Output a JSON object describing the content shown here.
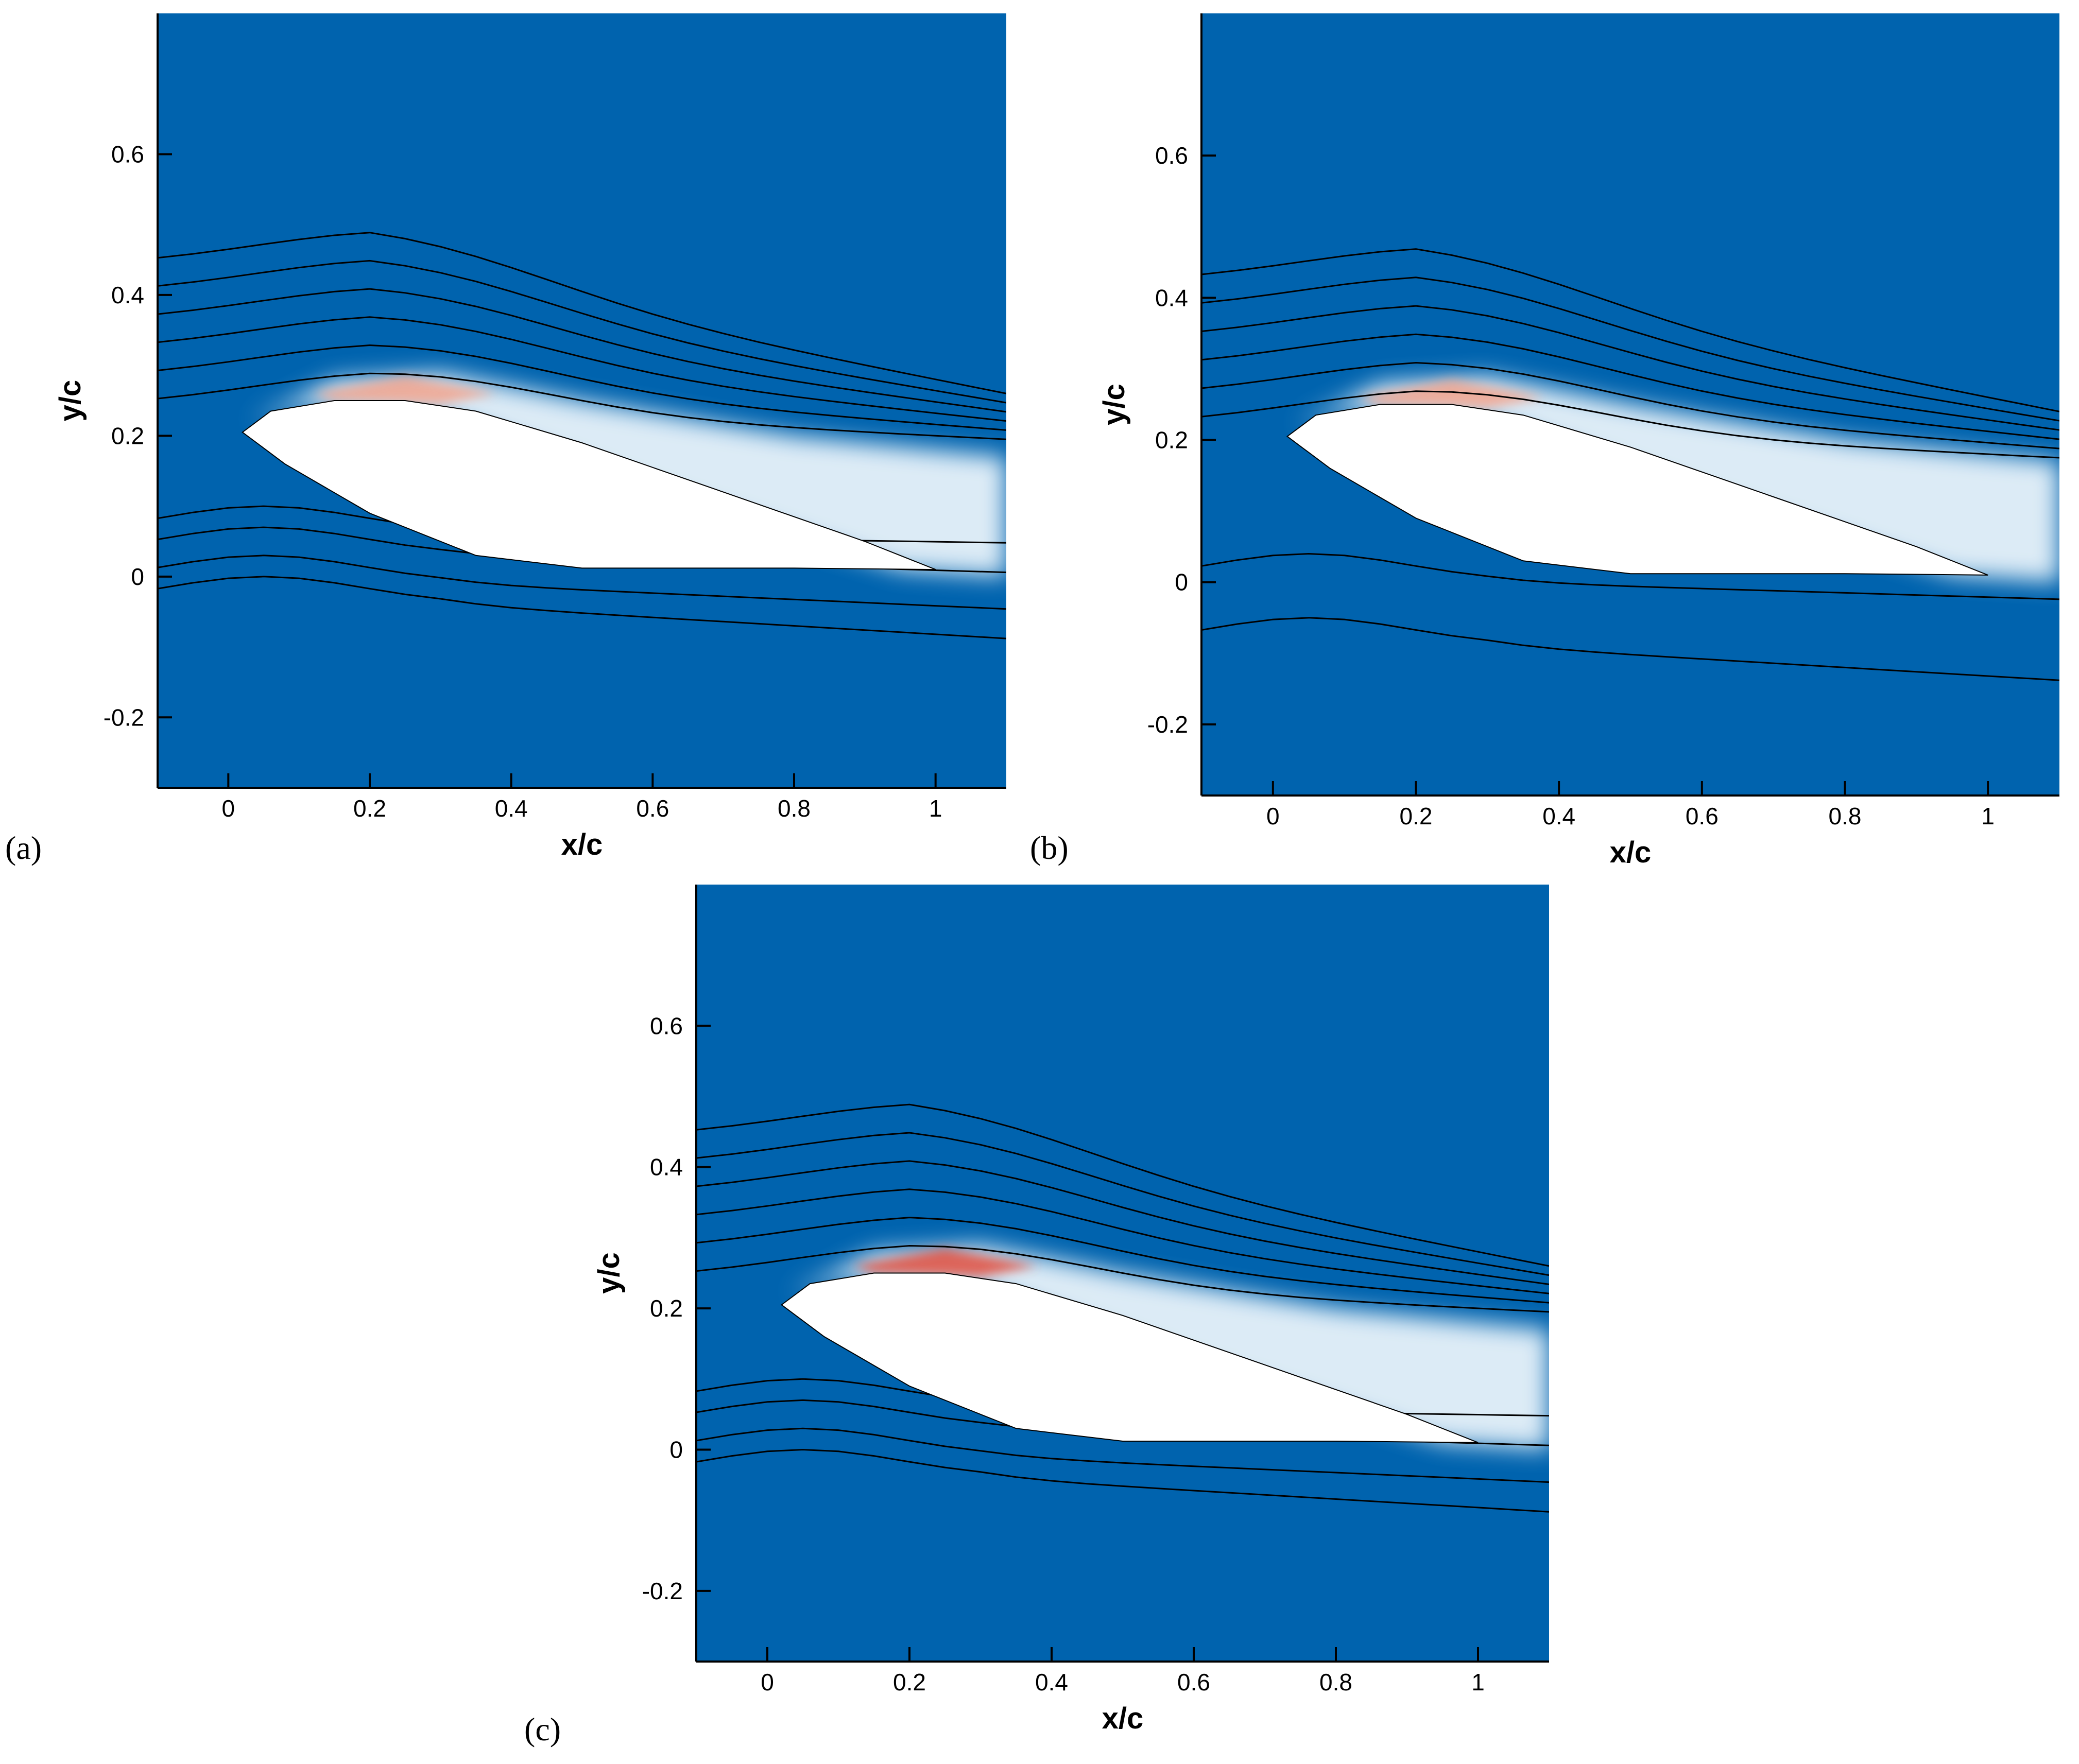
{
  "chart_data": [
    {
      "type": "contour",
      "panel_label": "(a)",
      "xlabel": "x/c",
      "ylabel": "y/c",
      "xlim": [
        -0.1,
        1.1
      ],
      "ylim": [
        -0.3,
        0.8
      ],
      "xticks": [
        0,
        0.2,
        0.4,
        0.6,
        0.8,
        1
      ],
      "yticks": [
        -0.2,
        0,
        0.2,
        0.4,
        0.6
      ]
    },
    {
      "type": "contour",
      "panel_label": "(b)",
      "xlabel": "x/c",
      "ylabel": "y/c",
      "xlim": [
        -0.1,
        1.1
      ],
      "ylim": [
        -0.3,
        0.8
      ],
      "xticks": [
        0,
        0.2,
        0.4,
        0.6,
        0.8,
        1
      ],
      "yticks": [
        -0.2,
        0,
        0.2,
        0.4,
        0.6
      ]
    },
    {
      "type": "contour",
      "panel_label": "(c)",
      "xlabel": "x/c",
      "ylabel": "y/c",
      "xlim": [
        -0.1,
        1.1
      ],
      "ylim": [
        -0.3,
        0.8
      ],
      "xticks": [
        0,
        0.2,
        0.4,
        0.6,
        0.8,
        1
      ],
      "yticks": [
        -0.2,
        0,
        0.2,
        0.4,
        0.6
      ]
    }
  ]
}
